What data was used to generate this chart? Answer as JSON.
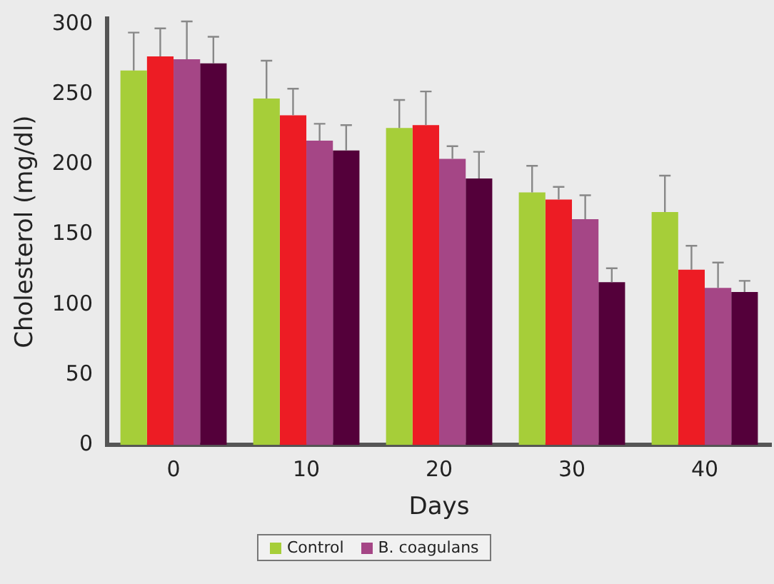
{
  "chart_data": {
    "type": "bar",
    "xlabel": "Days",
    "ylabel": "Cholesterol (mg/dl)",
    "categories": [
      "0",
      "10",
      "20",
      "30",
      "40"
    ],
    "series": [
      {
        "name": "Control",
        "color": "#a6ce39",
        "values": [
          267,
          247,
          226,
          180,
          166
        ],
        "errors": [
          27,
          27,
          20,
          19,
          26
        ]
      },
      {
        "color": "#ed1c24",
        "values": [
          277,
          235,
          228,
          175,
          125
        ],
        "errors": [
          20,
          19,
          24,
          9,
          17
        ]
      },
      {
        "name": "B. coagulans",
        "color": "#a54686",
        "values": [
          275,
          217,
          204,
          161,
          112
        ],
        "errors": [
          27,
          12,
          9,
          17,
          18
        ]
      },
      {
        "color": "#54003a",
        "values": [
          272,
          210,
          190,
          116,
          109
        ],
        "errors": [
          19,
          18,
          19,
          10,
          8
        ]
      }
    ],
    "ylim": [
      0,
      304
    ],
    "yticks": [
      0,
      50,
      100,
      150,
      200,
      250,
      300
    ],
    "grid": false,
    "legend": "bottom"
  }
}
